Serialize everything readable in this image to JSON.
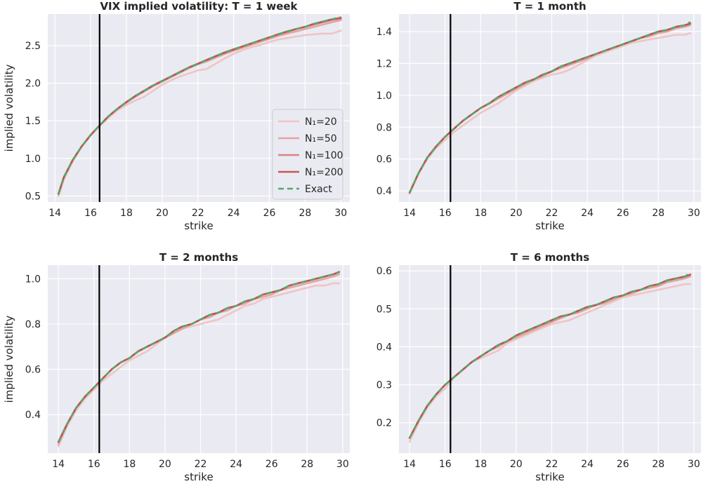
{
  "chart_data": [
    {
      "type": "line",
      "title": "VIX implied volatility: T = 1 week",
      "xlabel": "strike",
      "ylabel": "implied volatility",
      "xlim": [
        13.6,
        30.5
      ],
      "ylim": [
        0.42,
        2.92
      ],
      "xticks": [
        14,
        16,
        18,
        20,
        22,
        24,
        26,
        28,
        30
      ],
      "yticks": [
        0.5,
        1.0,
        1.5,
        2.0,
        2.5
      ],
      "ytick_labels": [
        "0.5",
        "1.0",
        "1.5",
        "2.0",
        "2.5"
      ],
      "vline_x": 16.5,
      "legend": "center-right",
      "x": [
        14.2,
        14.5,
        15,
        15.5,
        16,
        16.5,
        17,
        17.5,
        18,
        18.5,
        19,
        19.5,
        20,
        20.5,
        21,
        21.5,
        22,
        22.5,
        23,
        23.5,
        24,
        24.5,
        25,
        25.5,
        26,
        26.5,
        27,
        27.5,
        28,
        28.5,
        29,
        29.5,
        30
      ],
      "series": [
        {
          "name": "N₁=20",
          "values": [
            0.5,
            0.72,
            0.96,
            1.16,
            1.32,
            1.43,
            1.54,
            1.64,
            1.71,
            1.77,
            1.82,
            1.9,
            1.98,
            2.04,
            2.09,
            2.13,
            2.17,
            2.19,
            2.26,
            2.33,
            2.39,
            2.44,
            2.48,
            2.51,
            2.55,
            2.58,
            2.6,
            2.62,
            2.64,
            2.65,
            2.66,
            2.66,
            2.7
          ]
        },
        {
          "name": "N₁=50",
          "values": [
            0.52,
            0.74,
            0.98,
            1.16,
            1.31,
            1.44,
            1.56,
            1.66,
            1.74,
            1.82,
            1.89,
            1.96,
            2.02,
            2.08,
            2.14,
            2.2,
            2.25,
            2.29,
            2.34,
            2.39,
            2.43,
            2.47,
            2.51,
            2.55,
            2.59,
            2.63,
            2.66,
            2.69,
            2.72,
            2.75,
            2.78,
            2.81,
            2.84
          ]
        },
        {
          "name": "N₁=100",
          "values": [
            0.53,
            0.75,
            0.98,
            1.16,
            1.31,
            1.44,
            1.56,
            1.66,
            1.75,
            1.83,
            1.9,
            1.97,
            2.03,
            2.09,
            2.15,
            2.21,
            2.26,
            2.31,
            2.36,
            2.4,
            2.45,
            2.49,
            2.53,
            2.57,
            2.61,
            2.65,
            2.68,
            2.72,
            2.75,
            2.78,
            2.81,
            2.84,
            2.86
          ]
        },
        {
          "name": "N₁=200",
          "values": [
            0.53,
            0.75,
            0.98,
            1.16,
            1.31,
            1.44,
            1.56,
            1.66,
            1.75,
            1.83,
            1.9,
            1.97,
            2.03,
            2.09,
            2.15,
            2.21,
            2.26,
            2.31,
            2.36,
            2.41,
            2.45,
            2.49,
            2.53,
            2.57,
            2.61,
            2.65,
            2.69,
            2.72,
            2.75,
            2.79,
            2.82,
            2.85,
            2.87
          ]
        },
        {
          "name": "Exact",
          "values": [
            0.53,
            0.75,
            0.98,
            1.16,
            1.31,
            1.44,
            1.56,
            1.66,
            1.75,
            1.83,
            1.9,
            1.97,
            2.03,
            2.09,
            2.15,
            2.21,
            2.26,
            2.31,
            2.36,
            2.41,
            2.45,
            2.49,
            2.53,
            2.57,
            2.61,
            2.65,
            2.69,
            2.72,
            2.75,
            2.79,
            2.82,
            2.85,
            2.88
          ]
        }
      ]
    },
    {
      "type": "line",
      "title": "T = 1 month",
      "xlabel": "strike",
      "ylabel": "",
      "xlim": [
        13.4,
        30.4
      ],
      "ylim": [
        0.33,
        1.51
      ],
      "xticks": [
        14,
        16,
        18,
        20,
        22,
        24,
        26,
        28,
        30
      ],
      "yticks": [
        0.4,
        0.6,
        0.8,
        1.0,
        1.2,
        1.4
      ],
      "ytick_labels": [
        "0.4",
        "0.6",
        "0.8",
        "1.0",
        "1.2",
        "1.4"
      ],
      "vline_x": 16.3,
      "x": [
        14,
        14.5,
        15,
        15.5,
        16,
        16.5,
        17,
        17.5,
        18,
        18.5,
        19,
        19.5,
        20,
        20.5,
        21,
        21.5,
        22,
        22.5,
        23,
        23.5,
        24,
        24.5,
        25,
        25.5,
        26,
        26.5,
        27,
        27.5,
        28,
        28.5,
        29,
        29.5,
        29.8
      ],
      "series": [
        {
          "name": "N₁=20",
          "values": [
            0.38,
            0.51,
            0.6,
            0.67,
            0.72,
            0.77,
            0.81,
            0.85,
            0.89,
            0.92,
            0.95,
            0.99,
            1.03,
            1.06,
            1.09,
            1.11,
            1.13,
            1.14,
            1.16,
            1.19,
            1.22,
            1.25,
            1.27,
            1.29,
            1.31,
            1.33,
            1.34,
            1.35,
            1.36,
            1.37,
            1.38,
            1.38,
            1.39
          ]
        },
        {
          "name": "N₁=50",
          "values": [
            0.39,
            0.51,
            0.61,
            0.68,
            0.74,
            0.79,
            0.84,
            0.88,
            0.92,
            0.95,
            0.98,
            1.01,
            1.04,
            1.07,
            1.1,
            1.12,
            1.15,
            1.17,
            1.19,
            1.21,
            1.23,
            1.26,
            1.28,
            1.3,
            1.32,
            1.34,
            1.36,
            1.37,
            1.39,
            1.4,
            1.42,
            1.43,
            1.44
          ]
        },
        {
          "name": "N₁=100",
          "values": [
            0.39,
            0.51,
            0.61,
            0.68,
            0.74,
            0.79,
            0.84,
            0.88,
            0.92,
            0.95,
            0.99,
            1.02,
            1.05,
            1.08,
            1.1,
            1.13,
            1.15,
            1.18,
            1.2,
            1.22,
            1.24,
            1.26,
            1.28,
            1.3,
            1.32,
            1.34,
            1.36,
            1.38,
            1.4,
            1.41,
            1.43,
            1.44,
            1.45
          ]
        },
        {
          "name": "N₁=200",
          "values": [
            0.39,
            0.51,
            0.61,
            0.68,
            0.74,
            0.79,
            0.84,
            0.88,
            0.92,
            0.95,
            0.99,
            1.02,
            1.05,
            1.08,
            1.1,
            1.13,
            1.15,
            1.18,
            1.2,
            1.22,
            1.24,
            1.26,
            1.28,
            1.3,
            1.32,
            1.34,
            1.36,
            1.38,
            1.4,
            1.41,
            1.43,
            1.44,
            1.45
          ]
        },
        {
          "name": "Exact",
          "values": [
            0.39,
            0.51,
            0.61,
            0.68,
            0.74,
            0.79,
            0.84,
            0.88,
            0.92,
            0.95,
            0.99,
            1.02,
            1.05,
            1.08,
            1.1,
            1.13,
            1.15,
            1.18,
            1.2,
            1.22,
            1.24,
            1.26,
            1.28,
            1.3,
            1.32,
            1.34,
            1.36,
            1.38,
            1.4,
            1.41,
            1.43,
            1.44,
            1.46
          ]
        }
      ]
    },
    {
      "type": "line",
      "title": "T = 2 months",
      "xlabel": "strike",
      "ylabel": "implied volatility",
      "xlim": [
        13.4,
        30.4
      ],
      "ylim": [
        0.23,
        1.06
      ],
      "xticks": [
        14,
        16,
        18,
        20,
        22,
        24,
        26,
        28,
        30
      ],
      "yticks": [
        0.4,
        0.6,
        0.8,
        1.0
      ],
      "ytick_labels": [
        "0.4",
        "0.6",
        "0.8",
        "1.0"
      ],
      "vline_x": 16.3,
      "x": [
        14,
        14.5,
        15,
        15.5,
        16,
        16.5,
        17,
        17.5,
        18,
        18.5,
        19,
        19.5,
        20,
        20.5,
        21,
        21.5,
        22,
        22.5,
        23,
        23.5,
        24,
        24.5,
        25,
        25.5,
        26,
        26.5,
        27,
        27.5,
        28,
        28.5,
        29,
        29.5,
        29.8
      ],
      "series": [
        {
          "name": "N₁=20",
          "values": [
            0.26,
            0.35,
            0.42,
            0.47,
            0.51,
            0.55,
            0.58,
            0.61,
            0.64,
            0.66,
            0.68,
            0.71,
            0.74,
            0.76,
            0.78,
            0.79,
            0.8,
            0.81,
            0.82,
            0.84,
            0.86,
            0.88,
            0.89,
            0.91,
            0.92,
            0.93,
            0.94,
            0.95,
            0.96,
            0.97,
            0.97,
            0.98,
            0.98
          ]
        },
        {
          "name": "N₁=50",
          "values": [
            0.27,
            0.36,
            0.43,
            0.48,
            0.52,
            0.56,
            0.6,
            0.63,
            0.65,
            0.68,
            0.7,
            0.72,
            0.74,
            0.76,
            0.78,
            0.8,
            0.82,
            0.83,
            0.85,
            0.86,
            0.88,
            0.89,
            0.91,
            0.92,
            0.93,
            0.95,
            0.96,
            0.97,
            0.98,
            0.99,
            1.0,
            1.01,
            1.02
          ]
        },
        {
          "name": "N₁=100",
          "values": [
            0.28,
            0.36,
            0.43,
            0.48,
            0.52,
            0.56,
            0.6,
            0.63,
            0.65,
            0.68,
            0.7,
            0.72,
            0.74,
            0.77,
            0.79,
            0.8,
            0.82,
            0.84,
            0.85,
            0.87,
            0.88,
            0.9,
            0.91,
            0.93,
            0.94,
            0.95,
            0.97,
            0.98,
            0.99,
            1.0,
            1.01,
            1.02,
            1.03
          ]
        },
        {
          "name": "N₁=200",
          "values": [
            0.28,
            0.36,
            0.43,
            0.48,
            0.52,
            0.56,
            0.6,
            0.63,
            0.65,
            0.68,
            0.7,
            0.72,
            0.74,
            0.77,
            0.79,
            0.8,
            0.82,
            0.84,
            0.85,
            0.87,
            0.88,
            0.9,
            0.91,
            0.93,
            0.94,
            0.95,
            0.97,
            0.98,
            0.99,
            1.0,
            1.01,
            1.02,
            1.03
          ]
        },
        {
          "name": "Exact",
          "values": [
            0.28,
            0.36,
            0.43,
            0.48,
            0.52,
            0.56,
            0.6,
            0.63,
            0.65,
            0.68,
            0.7,
            0.72,
            0.74,
            0.77,
            0.79,
            0.8,
            0.82,
            0.84,
            0.85,
            0.87,
            0.88,
            0.9,
            0.91,
            0.93,
            0.94,
            0.95,
            0.97,
            0.98,
            0.99,
            1.0,
            1.01,
            1.02,
            1.03
          ]
        }
      ]
    },
    {
      "type": "line",
      "title": "T = 6 months",
      "xlabel": "strike",
      "ylabel": "",
      "xlim": [
        13.4,
        30.4
      ],
      "ylim": [
        0.12,
        0.615
      ],
      "xticks": [
        14,
        16,
        18,
        20,
        22,
        24,
        26,
        28,
        30
      ],
      "yticks": [
        0.2,
        0.3,
        0.4,
        0.5,
        0.6
      ],
      "ytick_labels": [
        "0.2",
        "0.3",
        "0.4",
        "0.5",
        "0.6"
      ],
      "vline_x": 16.3,
      "x": [
        14,
        14.5,
        15,
        15.5,
        16,
        16.5,
        17,
        17.5,
        18,
        18.5,
        19,
        19.5,
        20,
        20.5,
        21,
        21.5,
        22,
        22.5,
        23,
        23.5,
        24,
        24.5,
        25,
        25.5,
        26,
        26.5,
        27,
        27.5,
        28,
        28.5,
        29,
        29.5,
        29.8
      ],
      "series": [
        {
          "name": "N₁=20",
          "values": [
            0.15,
            0.2,
            0.24,
            0.27,
            0.29,
            0.32,
            0.34,
            0.36,
            0.37,
            0.38,
            0.39,
            0.41,
            0.42,
            0.43,
            0.44,
            0.45,
            0.46,
            0.465,
            0.47,
            0.48,
            0.49,
            0.5,
            0.51,
            0.52,
            0.53,
            0.535,
            0.54,
            0.545,
            0.55,
            0.555,
            0.56,
            0.565,
            0.565
          ]
        },
        {
          "name": "N₁=50",
          "values": [
            0.16,
            0.205,
            0.245,
            0.275,
            0.3,
            0.32,
            0.34,
            0.36,
            0.375,
            0.39,
            0.4,
            0.415,
            0.425,
            0.435,
            0.445,
            0.455,
            0.465,
            0.475,
            0.485,
            0.49,
            0.5,
            0.51,
            0.515,
            0.525,
            0.535,
            0.54,
            0.55,
            0.555,
            0.56,
            0.57,
            0.575,
            0.58,
            0.585
          ]
        },
        {
          "name": "N₁=100",
          "values": [
            0.16,
            0.205,
            0.245,
            0.275,
            0.3,
            0.32,
            0.34,
            0.36,
            0.375,
            0.39,
            0.405,
            0.415,
            0.43,
            0.44,
            0.45,
            0.46,
            0.47,
            0.48,
            0.485,
            0.495,
            0.505,
            0.51,
            0.52,
            0.53,
            0.535,
            0.545,
            0.55,
            0.56,
            0.565,
            0.575,
            0.58,
            0.585,
            0.59
          ]
        },
        {
          "name": "N₁=200",
          "values": [
            0.16,
            0.205,
            0.245,
            0.275,
            0.3,
            0.32,
            0.34,
            0.36,
            0.375,
            0.39,
            0.405,
            0.415,
            0.43,
            0.44,
            0.45,
            0.46,
            0.47,
            0.48,
            0.485,
            0.495,
            0.505,
            0.51,
            0.52,
            0.53,
            0.535,
            0.545,
            0.55,
            0.56,
            0.565,
            0.575,
            0.58,
            0.585,
            0.59
          ]
        },
        {
          "name": "Exact",
          "values": [
            0.16,
            0.205,
            0.245,
            0.275,
            0.3,
            0.32,
            0.34,
            0.36,
            0.375,
            0.39,
            0.405,
            0.415,
            0.43,
            0.44,
            0.45,
            0.46,
            0.47,
            0.48,
            0.485,
            0.495,
            0.505,
            0.51,
            0.52,
            0.53,
            0.535,
            0.545,
            0.55,
            0.56,
            0.565,
            0.575,
            0.58,
            0.585,
            0.595
          ]
        }
      ]
    }
  ],
  "style": {
    "axes_bg": "#eaeaf2",
    "grid_color": "#ffffff",
    "vline_color": "#000000",
    "series_colors": [
      "#f0c2c2",
      "#e69a9a",
      "#d87878",
      "#c44e52",
      "#55a868"
    ],
    "series_opacity": [
      0.95,
      0.9,
      0.9,
      0.95,
      1
    ]
  }
}
